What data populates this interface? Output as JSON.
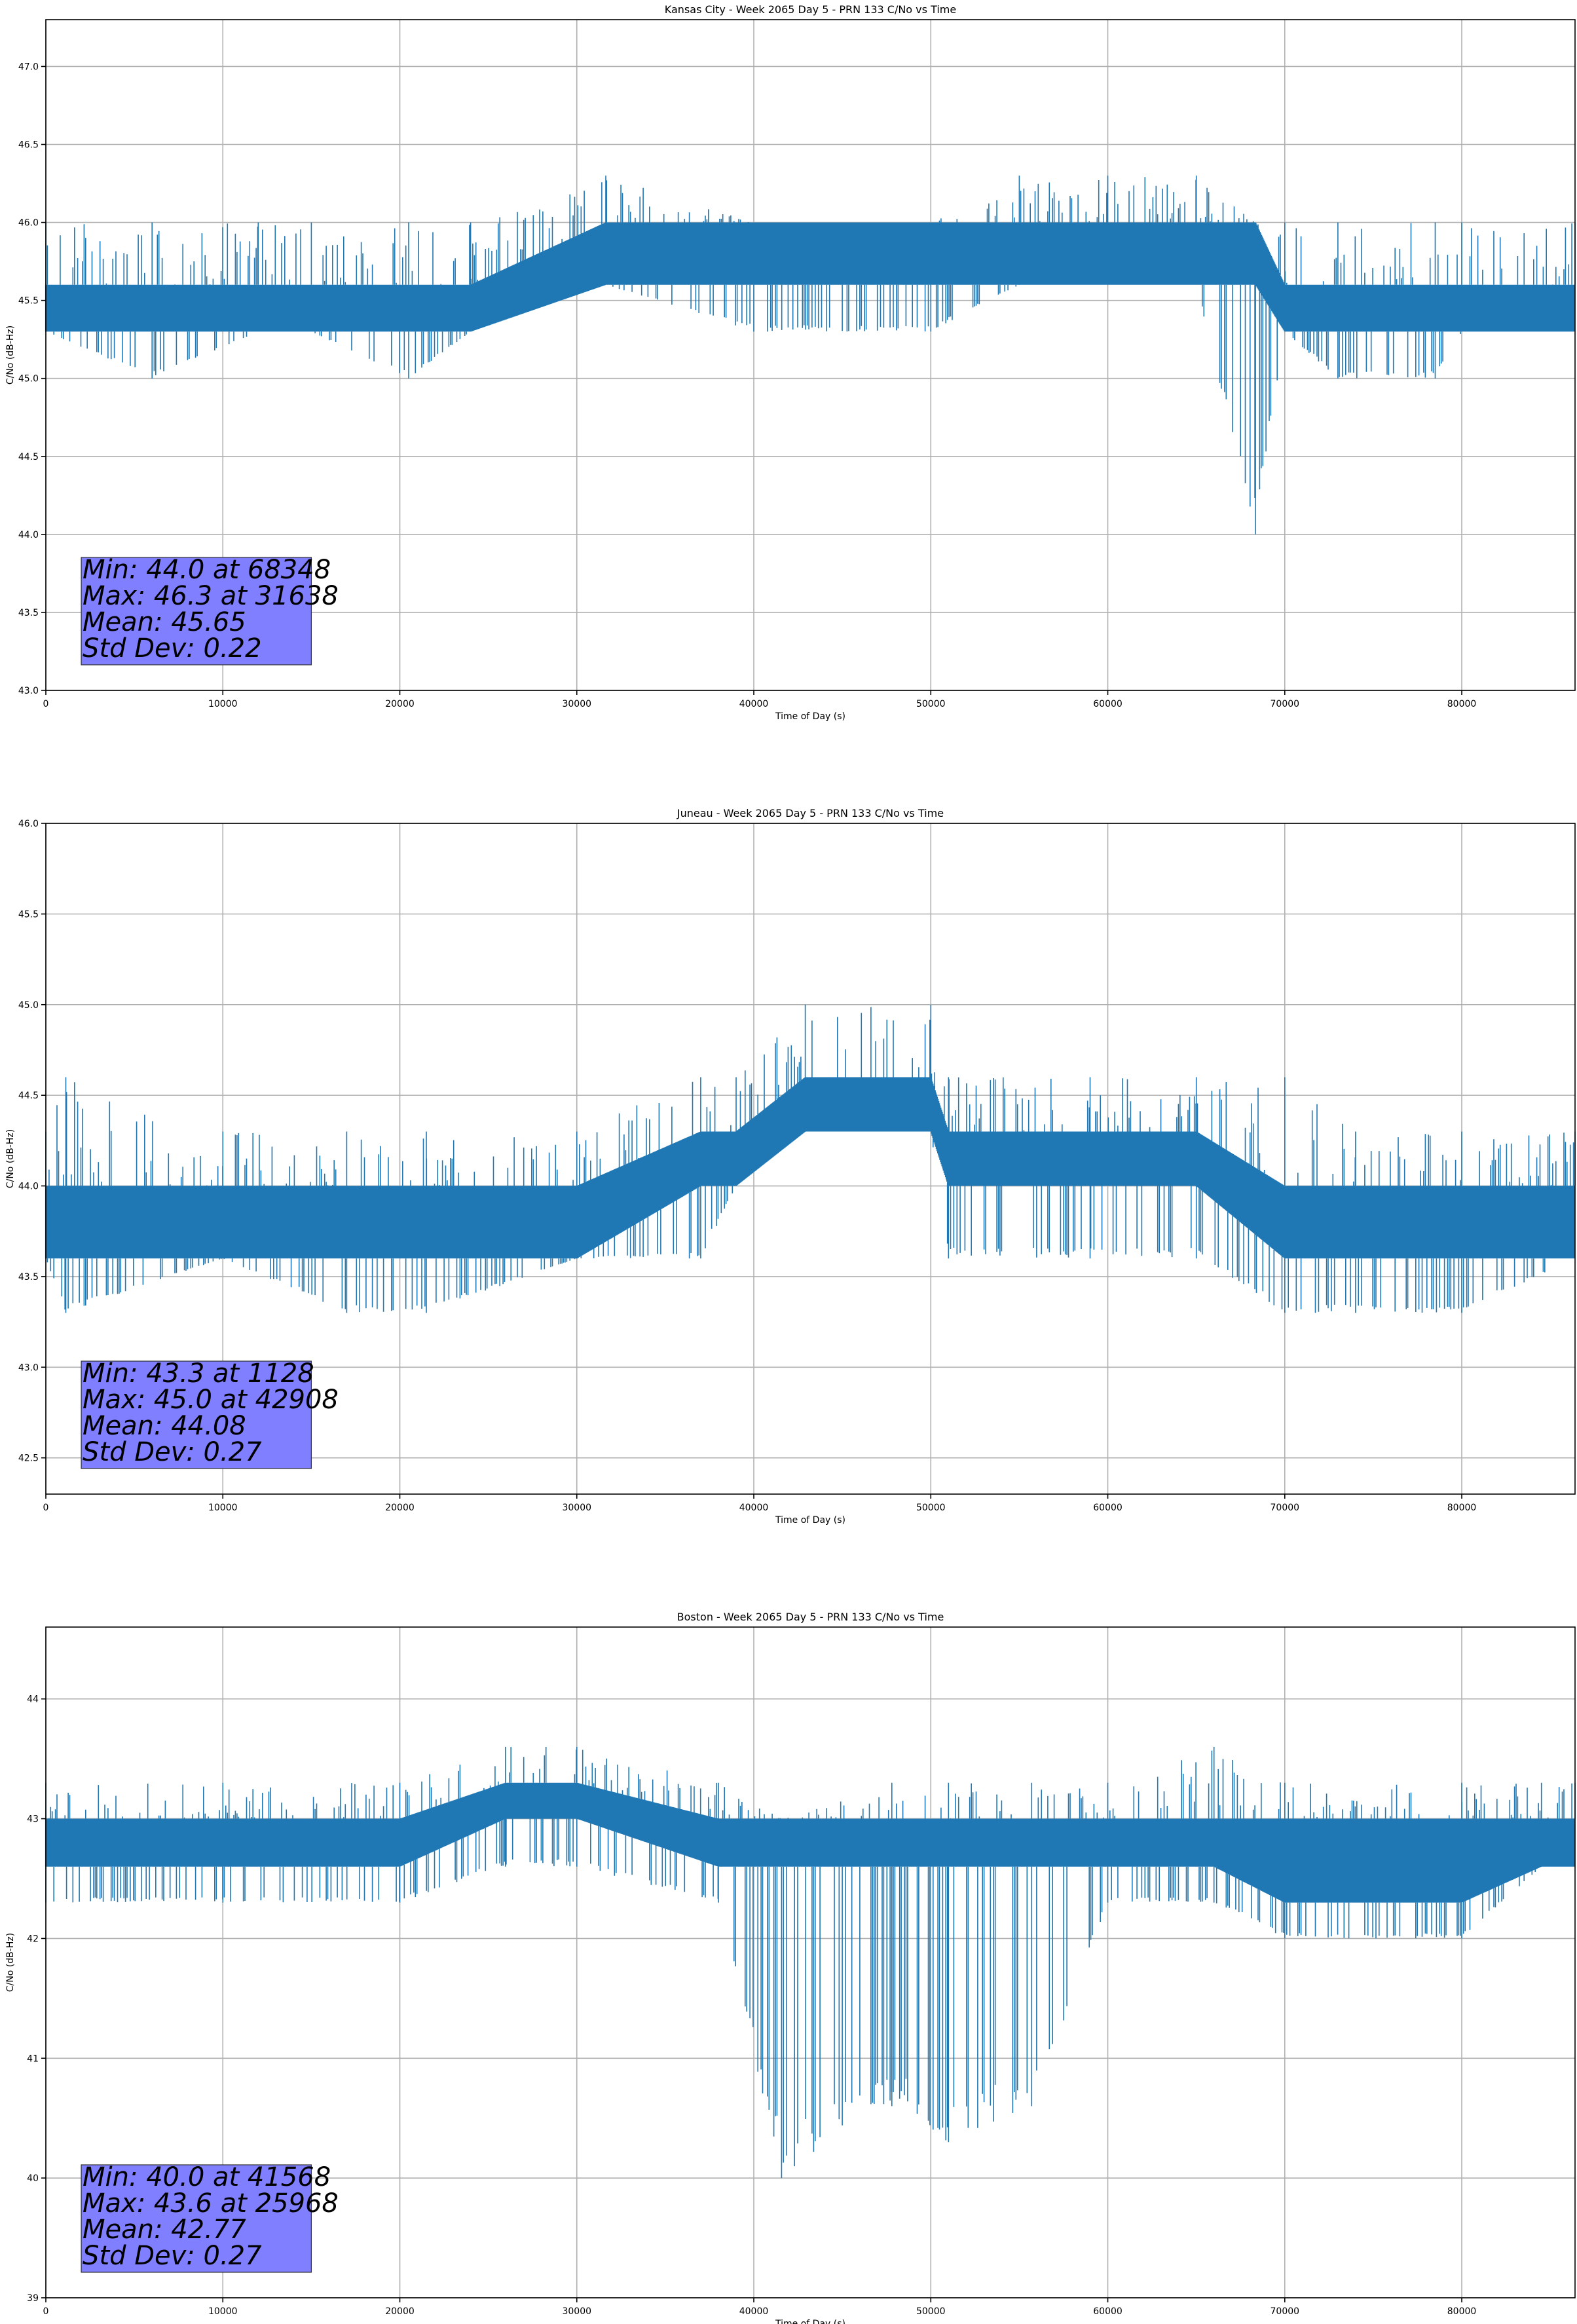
{
  "chart_data": [
    {
      "type": "line",
      "title": "Kansas City - Week 2065 Day 5 - PRN 133 C/No vs Time",
      "xlabel": "Time of Day (s)",
      "ylabel": "C/No (dB-Hz)",
      "xlim": [
        0,
        86400
      ],
      "ylim": [
        43.0,
        47.3
      ],
      "xticks": [
        0,
        10000,
        20000,
        30000,
        40000,
        50000,
        60000,
        70000,
        80000
      ],
      "yticks": [
        43.0,
        43.5,
        44.0,
        44.5,
        45.0,
        45.5,
        46.0,
        46.5,
        47.0
      ],
      "ytick_labels": [
        "43.0",
        "43.5",
        "44.0",
        "44.5",
        "45.0",
        "45.5",
        "46.0",
        "46.5",
        "47.0"
      ],
      "grid": true,
      "line_color": "#1f77b4",
      "stats": [
        "Min: 44.0 at 68348",
        "Max: 46.3 at 31638",
        "Mean: 45.65",
        "Std Dev: 0.22"
      ],
      "series": [
        {
          "x": [
            0,
            6000,
            12000,
            15000,
            20500,
            24000,
            31638,
            40000,
            50000,
            55000,
            60000,
            65000,
            68348,
            70000,
            73000,
            78500,
            80000,
            86400
          ],
          "lo": [
            45.3,
            45.0,
            45.3,
            45.3,
            45.0,
            45.3,
            45.6,
            45.3,
            45.3,
            45.6,
            45.6,
            45.6,
            44.0,
            45.3,
            45.0,
            45.0,
            45.3,
            45.3
          ],
          "hi": [
            46.0,
            46.0,
            46.0,
            46.0,
            46.0,
            46.0,
            46.3,
            46.0,
            46.0,
            46.3,
            46.3,
            46.3,
            46.0,
            46.0,
            46.0,
            46.0,
            46.0,
            46.0
          ],
          "band_lo": [
            45.3,
            45.3,
            45.3,
            45.3,
            45.3,
            45.3,
            45.6,
            45.6,
            45.6,
            45.6,
            45.6,
            45.6,
            45.6,
            45.3,
            45.3,
            45.3,
            45.3,
            45.3
          ],
          "band_hi": [
            45.6,
            45.6,
            45.6,
            45.6,
            45.6,
            45.6,
            46.0,
            46.0,
            46.0,
            46.0,
            46.0,
            46.0,
            46.0,
            45.6,
            45.6,
            45.6,
            45.6,
            45.6
          ]
        }
      ]
    },
    {
      "type": "line",
      "title": "Juneau - Week 2065 Day 5 - PRN 133 C/No vs Time",
      "xlabel": "Time of Day (s)",
      "ylabel": "C/No (dB-Hz)",
      "xlim": [
        0,
        86400
      ],
      "ylim": [
        42.3,
        46.0
      ],
      "xticks": [
        0,
        10000,
        20000,
        30000,
        40000,
        50000,
        60000,
        70000,
        80000
      ],
      "yticks": [
        42.5,
        43.0,
        43.5,
        44.0,
        44.5,
        45.0,
        45.5,
        46.0
      ],
      "ytick_labels": [
        "42.5",
        "43.0",
        "43.5",
        "44.0",
        "44.5",
        "45.0",
        "45.5",
        "46.0"
      ],
      "grid": true,
      "line_color": "#1f77b4",
      "stats": [
        "Min: 43.3 at 1128",
        "Max: 45.0 at 42908",
        "Mean: 44.08",
        "Std Dev: 0.27"
      ],
      "series": [
        {
          "x": [
            0,
            1128,
            10000,
            17000,
            21500,
            30000,
            37000,
            39000,
            42908,
            50000,
            51000,
            59000,
            65000,
            70000,
            74000,
            80000,
            86400
          ],
          "lo": [
            43.6,
            43.3,
            43.6,
            43.3,
            43.3,
            43.6,
            43.6,
            44.0,
            44.3,
            44.3,
            43.6,
            43.6,
            43.6,
            43.3,
            43.3,
            43.3,
            43.6
          ],
          "hi": [
            44.3,
            44.6,
            44.3,
            44.3,
            44.3,
            44.3,
            44.6,
            44.6,
            45.0,
            45.0,
            44.6,
            44.6,
            44.6,
            44.6,
            44.3,
            44.3,
            44.3
          ],
          "band_lo": [
            43.6,
            43.6,
            43.6,
            43.6,
            43.6,
            43.6,
            44.0,
            44.0,
            44.3,
            44.3,
            44.0,
            44.0,
            44.0,
            43.6,
            43.6,
            43.6,
            43.6
          ],
          "band_hi": [
            44.0,
            44.0,
            44.0,
            44.0,
            44.0,
            44.0,
            44.3,
            44.3,
            44.6,
            44.6,
            44.3,
            44.3,
            44.3,
            44.0,
            44.0,
            44.0,
            44.0
          ]
        }
      ]
    },
    {
      "type": "line",
      "title": "Boston - Week 2065 Day 5 - PRN 133 C/No vs Time",
      "xlabel": "Time of Day (s)",
      "ylabel": "C/No (dB-Hz)",
      "xlim": [
        0,
        86400
      ],
      "ylim": [
        39.0,
        44.6
      ],
      "xticks": [
        0,
        10000,
        20000,
        30000,
        40000,
        50000,
        60000,
        70000,
        80000
      ],
      "yticks": [
        39,
        40,
        41,
        42,
        43,
        44
      ],
      "ytick_labels": [
        "39",
        "40",
        "41",
        "42",
        "43",
        "44"
      ],
      "grid": true,
      "line_color": "#1f77b4",
      "stats": [
        "Min: 40.0 at 41568",
        "Max: 43.6 at 25968",
        "Mean: 42.77",
        "Std Dev: 0.27"
      ],
      "series": [
        {
          "x": [
            0,
            10000,
            20000,
            25968,
            30000,
            38000,
            41568,
            47800,
            51000,
            55700,
            60000,
            66000,
            70000,
            80000,
            84500,
            86400
          ],
          "lo": [
            42.3,
            42.3,
            42.3,
            42.6,
            42.6,
            42.3,
            40.0,
            40.6,
            40.3,
            40.6,
            42.3,
            42.3,
            42.0,
            42.0,
            42.6,
            42.6
          ],
          "hi": [
            43.3,
            43.3,
            43.3,
            43.6,
            43.6,
            43.3,
            43.0,
            43.3,
            43.3,
            43.3,
            43.3,
            43.6,
            43.3,
            43.3,
            43.3,
            43.3
          ],
          "band_lo": [
            42.6,
            42.6,
            42.6,
            43.0,
            43.0,
            42.6,
            42.6,
            42.6,
            42.6,
            42.6,
            42.6,
            42.6,
            42.3,
            42.3,
            42.6,
            42.6
          ],
          "band_hi": [
            43.0,
            43.0,
            43.0,
            43.3,
            43.3,
            43.0,
            43.0,
            43.0,
            43.0,
            43.0,
            43.0,
            43.0,
            43.0,
            43.0,
            43.0,
            43.0
          ]
        }
      ]
    }
  ]
}
